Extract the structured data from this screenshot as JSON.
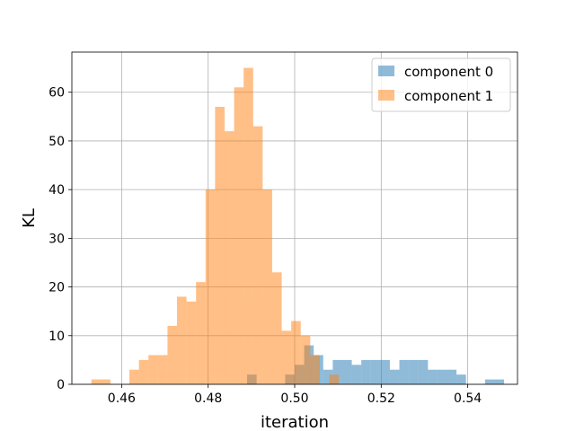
{
  "chart_data": {
    "type": "histogram",
    "xlabel": "iteration",
    "ylabel": "KL",
    "xlim": [
      0.4485,
      0.5515
    ],
    "ylim": [
      0,
      68.25
    ],
    "bin_width": 0.0022,
    "x_ticks": [
      0.46,
      0.48,
      0.5,
      0.52,
      0.54
    ],
    "x_tick_labels": [
      "0.46",
      "0.48",
      "0.50",
      "0.52",
      "0.54"
    ],
    "y_ticks": [
      0,
      10,
      20,
      30,
      40,
      50,
      60
    ],
    "y_tick_labels": [
      "0",
      "10",
      "20",
      "30",
      "40",
      "50",
      "60"
    ],
    "grid": true,
    "legend_position": "upper right",
    "alpha": 0.5,
    "series": [
      {
        "name": "component 0",
        "color": "#1f77b4",
        "bins": [
          [
            0.489,
            2
          ],
          [
            0.4978,
            2
          ],
          [
            0.5,
            4
          ],
          [
            0.5022,
            8
          ],
          [
            0.5044,
            6
          ],
          [
            0.5066,
            3
          ],
          [
            0.5088,
            5
          ],
          [
            0.511,
            5
          ],
          [
            0.5132,
            4
          ],
          [
            0.5154,
            5
          ],
          [
            0.5176,
            5
          ],
          [
            0.5198,
            5
          ],
          [
            0.522,
            3
          ],
          [
            0.5242,
            5
          ],
          [
            0.5264,
            5
          ],
          [
            0.5286,
            5
          ],
          [
            0.5308,
            3
          ],
          [
            0.533,
            3
          ],
          [
            0.5352,
            3
          ],
          [
            0.5374,
            2
          ],
          [
            0.544,
            1
          ],
          [
            0.5462,
            1
          ]
        ]
      },
      {
        "name": "component 1",
        "color": "#ff7f0e",
        "bins": [
          [
            0.453,
            1
          ],
          [
            0.4552,
            1
          ],
          [
            0.4618,
            3
          ],
          [
            0.464,
            5
          ],
          [
            0.4662,
            6
          ],
          [
            0.4684,
            6
          ],
          [
            0.4706,
            12
          ],
          [
            0.4728,
            18
          ],
          [
            0.475,
            17
          ],
          [
            0.4772,
            21
          ],
          [
            0.4794,
            40
          ],
          [
            0.4816,
            57
          ],
          [
            0.4838,
            52
          ],
          [
            0.486,
            61
          ],
          [
            0.4882,
            65
          ],
          [
            0.4904,
            53
          ],
          [
            0.4926,
            40
          ],
          [
            0.4948,
            23
          ],
          [
            0.497,
            11
          ],
          [
            0.4992,
            13
          ],
          [
            0.5014,
            10
          ],
          [
            0.5036,
            6
          ],
          [
            0.508,
            2
          ]
        ]
      }
    ]
  }
}
